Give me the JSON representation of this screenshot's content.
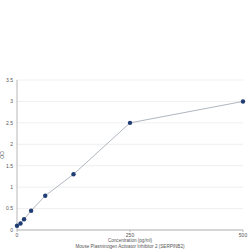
{
  "chart_data": {
    "type": "line",
    "x_label": "Concentration (pg/ml)",
    "subtitle": "Mouse Plasminogen Activator Inhibitor 2 (SERPINB2)",
    "y_label": "OD",
    "x": [
      0,
      7.8,
      15.6,
      31.25,
      62.5,
      125,
      250,
      500
    ],
    "values": [
      0.1,
      0.15,
      0.25,
      0.45,
      0.8,
      1.3,
      2.5,
      3.0
    ],
    "color": "#1f3d73",
    "marker": "circle",
    "line_style": "solid",
    "xlim": [
      0,
      500
    ],
    "xticks": [
      0,
      250,
      500
    ],
    "ylim": [
      0,
      3.5
    ],
    "yticks": [
      0,
      0.5,
      1,
      1.5,
      2,
      2.5,
      3,
      3.5
    ],
    "grid": true
  }
}
